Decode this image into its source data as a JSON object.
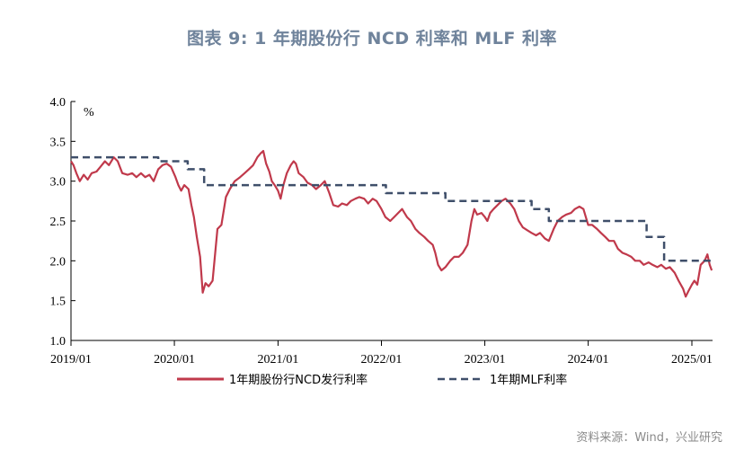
{
  "title": "图表 9:   1 年期股份行 NCD 利率和 MLF 利率",
  "source": "资料来源：Wind，兴业研究",
  "chart_data": {
    "type": "line",
    "y_unit": "%",
    "ylim": [
      1.0,
      4.0
    ],
    "yticks": [
      "1.0",
      "1.5",
      "2.0",
      "2.5",
      "3.0",
      "3.5",
      "4.0"
    ],
    "xlim": [
      "2019-01-01",
      "2025-03-15"
    ],
    "xticks": [
      {
        "date": "2019-01-01",
        "label": "2019/01"
      },
      {
        "date": "2020-01-01",
        "label": "2020/01"
      },
      {
        "date": "2021-01-01",
        "label": "2021/01"
      },
      {
        "date": "2022-01-01",
        "label": "2022/01"
      },
      {
        "date": "2023-01-01",
        "label": "2023/01"
      },
      {
        "date": "2024-01-01",
        "label": "2024/01"
      },
      {
        "date": "2025-01-01",
        "label": "2025/01"
      }
    ],
    "grid": false,
    "legend_position": "bottom",
    "series": [
      {
        "name": "1年期股份行NCD发行利率",
        "color": "#c0394b",
        "style": "solid",
        "points": [
          [
            "2019-01-01",
            3.25
          ],
          [
            "2019-01-10",
            3.2
          ],
          [
            "2019-01-20",
            3.1
          ],
          [
            "2019-02-01",
            3.0
          ],
          [
            "2019-02-15",
            3.08
          ],
          [
            "2019-03-01",
            3.02
          ],
          [
            "2019-03-15",
            3.1
          ],
          [
            "2019-04-01",
            3.12
          ],
          [
            "2019-04-15",
            3.18
          ],
          [
            "2019-05-01",
            3.25
          ],
          [
            "2019-05-15",
            3.2
          ],
          [
            "2019-06-01",
            3.3
          ],
          [
            "2019-06-15",
            3.25
          ],
          [
            "2019-07-01",
            3.1
          ],
          [
            "2019-07-20",
            3.08
          ],
          [
            "2019-08-05",
            3.1
          ],
          [
            "2019-08-20",
            3.05
          ],
          [
            "2019-09-05",
            3.1
          ],
          [
            "2019-09-20",
            3.05
          ],
          [
            "2019-10-05",
            3.08
          ],
          [
            "2019-10-20",
            3.0
          ],
          [
            "2019-11-05",
            3.15
          ],
          [
            "2019-11-20",
            3.2
          ],
          [
            "2019-12-05",
            3.22
          ],
          [
            "2019-12-20",
            3.18
          ],
          [
            "2020-01-05",
            3.05
          ],
          [
            "2020-01-15",
            2.95
          ],
          [
            "2020-01-25",
            2.88
          ],
          [
            "2020-02-05",
            2.95
          ],
          [
            "2020-02-20",
            2.9
          ],
          [
            "2020-03-01",
            2.7
          ],
          [
            "2020-03-10",
            2.55
          ],
          [
            "2020-03-20",
            2.3
          ],
          [
            "2020-04-01",
            2.05
          ],
          [
            "2020-04-10",
            1.6
          ],
          [
            "2020-04-20",
            1.72
          ],
          [
            "2020-05-01",
            1.68
          ],
          [
            "2020-05-15",
            1.75
          ],
          [
            "2020-06-01",
            2.4
          ],
          [
            "2020-06-15",
            2.45
          ],
          [
            "2020-07-01",
            2.8
          ],
          [
            "2020-07-15",
            2.9
          ],
          [
            "2020-08-01",
            3.0
          ],
          [
            "2020-08-20",
            3.05
          ],
          [
            "2020-09-05",
            3.1
          ],
          [
            "2020-09-20",
            3.15
          ],
          [
            "2020-10-05",
            3.2
          ],
          [
            "2020-10-20",
            3.3
          ],
          [
            "2020-11-01",
            3.35
          ],
          [
            "2020-11-10",
            3.38
          ],
          [
            "2020-11-20",
            3.22
          ],
          [
            "2020-12-01",
            3.12
          ],
          [
            "2020-12-10",
            3.0
          ],
          [
            "2020-12-20",
            2.95
          ],
          [
            "2021-01-01",
            2.88
          ],
          [
            "2021-01-10",
            2.78
          ],
          [
            "2021-01-20",
            2.95
          ],
          [
            "2021-02-01",
            3.1
          ],
          [
            "2021-02-15",
            3.2
          ],
          [
            "2021-02-25",
            3.25
          ],
          [
            "2021-03-05",
            3.22
          ],
          [
            "2021-03-15",
            3.1
          ],
          [
            "2021-04-01",
            3.05
          ],
          [
            "2021-04-15",
            2.98
          ],
          [
            "2021-05-01",
            2.95
          ],
          [
            "2021-05-15",
            2.9
          ],
          [
            "2021-06-01",
            2.95
          ],
          [
            "2021-06-15",
            3.0
          ],
          [
            "2021-07-01",
            2.85
          ],
          [
            "2021-07-15",
            2.7
          ],
          [
            "2021-08-01",
            2.68
          ],
          [
            "2021-08-15",
            2.72
          ],
          [
            "2021-09-01",
            2.7
          ],
          [
            "2021-09-15",
            2.75
          ],
          [
            "2021-10-01",
            2.78
          ],
          [
            "2021-10-15",
            2.8
          ],
          [
            "2021-11-01",
            2.78
          ],
          [
            "2021-11-15",
            2.72
          ],
          [
            "2021-12-01",
            2.78
          ],
          [
            "2021-12-15",
            2.75
          ],
          [
            "2022-01-01",
            2.65
          ],
          [
            "2022-01-15",
            2.55
          ],
          [
            "2022-02-01",
            2.5
          ],
          [
            "2022-02-15",
            2.55
          ],
          [
            "2022-03-01",
            2.6
          ],
          [
            "2022-03-15",
            2.65
          ],
          [
            "2022-04-01",
            2.55
          ],
          [
            "2022-04-15",
            2.5
          ],
          [
            "2022-05-01",
            2.4
          ],
          [
            "2022-05-15",
            2.35
          ],
          [
            "2022-06-01",
            2.3
          ],
          [
            "2022-06-15",
            2.25
          ],
          [
            "2022-07-01",
            2.2
          ],
          [
            "2022-07-10",
            2.1
          ],
          [
            "2022-07-20",
            1.95
          ],
          [
            "2022-08-01",
            1.88
          ],
          [
            "2022-08-15",
            1.92
          ],
          [
            "2022-09-01",
            2.0
          ],
          [
            "2022-09-15",
            2.05
          ],
          [
            "2022-10-01",
            2.05
          ],
          [
            "2022-10-15",
            2.1
          ],
          [
            "2022-11-01",
            2.2
          ],
          [
            "2022-11-15",
            2.5
          ],
          [
            "2022-11-25",
            2.65
          ],
          [
            "2022-12-05",
            2.58
          ],
          [
            "2022-12-20",
            2.6
          ],
          [
            "2023-01-01",
            2.55
          ],
          [
            "2023-01-10",
            2.5
          ],
          [
            "2023-01-20",
            2.6
          ],
          [
            "2023-02-01",
            2.65
          ],
          [
            "2023-02-15",
            2.7
          ],
          [
            "2023-03-01",
            2.75
          ],
          [
            "2023-03-15",
            2.78
          ],
          [
            "2023-04-01",
            2.72
          ],
          [
            "2023-04-15",
            2.65
          ],
          [
            "2023-05-01",
            2.5
          ],
          [
            "2023-05-15",
            2.42
          ],
          [
            "2023-06-01",
            2.38
          ],
          [
            "2023-06-15",
            2.35
          ],
          [
            "2023-07-01",
            2.32
          ],
          [
            "2023-07-15",
            2.35
          ],
          [
            "2023-08-01",
            2.28
          ],
          [
            "2023-08-15",
            2.25
          ],
          [
            "2023-09-01",
            2.4
          ],
          [
            "2023-09-15",
            2.5
          ],
          [
            "2023-10-01",
            2.55
          ],
          [
            "2023-10-15",
            2.58
          ],
          [
            "2023-11-01",
            2.6
          ],
          [
            "2023-11-15",
            2.65
          ],
          [
            "2023-12-01",
            2.68
          ],
          [
            "2023-12-15",
            2.65
          ],
          [
            "2024-01-01",
            2.45
          ],
          [
            "2024-01-15",
            2.45
          ],
          [
            "2024-02-01",
            2.4
          ],
          [
            "2024-02-15",
            2.35
          ],
          [
            "2024-03-01",
            2.3
          ],
          [
            "2024-03-15",
            2.25
          ],
          [
            "2024-04-01",
            2.25
          ],
          [
            "2024-04-15",
            2.15
          ],
          [
            "2024-05-01",
            2.1
          ],
          [
            "2024-05-15",
            2.08
          ],
          [
            "2024-06-01",
            2.05
          ],
          [
            "2024-06-15",
            2.0
          ],
          [
            "2024-07-01",
            2.0
          ],
          [
            "2024-07-15",
            1.95
          ],
          [
            "2024-08-01",
            1.98
          ],
          [
            "2024-08-15",
            1.95
          ],
          [
            "2024-09-01",
            1.92
          ],
          [
            "2024-09-15",
            1.95
          ],
          [
            "2024-10-01",
            1.9
          ],
          [
            "2024-10-15",
            1.92
          ],
          [
            "2024-11-01",
            1.85
          ],
          [
            "2024-11-15",
            1.75
          ],
          [
            "2024-12-01",
            1.65
          ],
          [
            "2024-12-10",
            1.55
          ],
          [
            "2024-12-20",
            1.62
          ],
          [
            "2025-01-01",
            1.7
          ],
          [
            "2025-01-10",
            1.75
          ],
          [
            "2025-01-20",
            1.7
          ],
          [
            "2025-02-01",
            1.95
          ],
          [
            "2025-02-15",
            2.0
          ],
          [
            "2025-02-25",
            2.08
          ],
          [
            "2025-03-05",
            1.95
          ],
          [
            "2025-03-12",
            1.88
          ]
        ]
      },
      {
        "name": "1年期MLF利率",
        "color": "#3f4f6a",
        "style": "dashed",
        "points": [
          [
            "2019-01-01",
            3.3
          ],
          [
            "2019-11-05",
            3.3
          ],
          [
            "2019-11-05",
            3.25
          ],
          [
            "2020-02-17",
            3.25
          ],
          [
            "2020-02-17",
            3.15
          ],
          [
            "2020-04-15",
            3.15
          ],
          [
            "2020-04-15",
            2.95
          ],
          [
            "2022-01-17",
            2.95
          ],
          [
            "2022-01-17",
            2.85
          ],
          [
            "2022-08-15",
            2.85
          ],
          [
            "2022-08-15",
            2.75
          ],
          [
            "2023-06-15",
            2.75
          ],
          [
            "2023-06-15",
            2.65
          ],
          [
            "2023-08-15",
            2.65
          ],
          [
            "2023-08-15",
            2.5
          ],
          [
            "2024-07-25",
            2.5
          ],
          [
            "2024-07-25",
            2.3
          ],
          [
            "2024-09-25",
            2.3
          ],
          [
            "2024-09-25",
            2.0
          ],
          [
            "2025-03-15",
            2.0
          ]
        ]
      }
    ]
  }
}
